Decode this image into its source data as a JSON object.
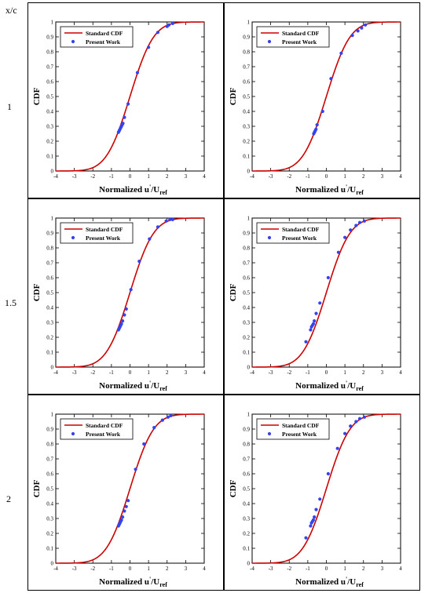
{
  "table": {
    "header_label": "x/c",
    "row_labels": [
      "1",
      "1.5",
      "2"
    ]
  },
  "colors": {
    "curve": "#cc0000",
    "points": "#3344ee",
    "frame": "#000000"
  },
  "chart_data": [
    {
      "type": "line",
      "position": "row-1-left",
      "xlabel": "Normalized  u'/U_ref",
      "ylabel": "CDF",
      "xlim": [
        -4,
        4
      ],
      "ylim": [
        0,
        1
      ],
      "xticks": [
        "-4",
        "-3",
        "-2",
        "-1",
        "0",
        "1",
        "2",
        "3",
        "4"
      ],
      "yticks": [
        "0",
        "0.1",
        "0.2",
        "0.3",
        "0.4",
        "0.5",
        "0.6",
        "0.7",
        "0.8",
        "0.9",
        "1"
      ],
      "legend": {
        "placement": "top-left",
        "entries": [
          "Standard CDF",
          "Present Work"
        ]
      },
      "series": [
        {
          "name": "Standard CDF",
          "kind": "normal-cdf",
          "mean": 0,
          "std": 1
        },
        {
          "name": "Present Work",
          "kind": "scatter",
          "x": [
            -0.62,
            -0.58,
            -0.54,
            -0.5,
            -0.46,
            -0.42,
            -0.38,
            -0.3,
            -0.1,
            0.4,
            1.0,
            1.5,
            2.0,
            2.1,
            2.3
          ],
          "y": [
            0.26,
            0.27,
            0.28,
            0.29,
            0.3,
            0.31,
            0.32,
            0.36,
            0.45,
            0.66,
            0.83,
            0.93,
            0.97,
            0.98,
            0.99
          ]
        }
      ]
    },
    {
      "type": "line",
      "position": "row-1-right",
      "xlabel": "Normalized  u'/U_ref",
      "ylabel": "CDF",
      "xlim": [
        -4,
        4
      ],
      "ylim": [
        0,
        1
      ],
      "xticks": [
        "-4",
        "-3",
        "-2",
        "-1",
        "0",
        "1",
        "2",
        "3",
        "4"
      ],
      "yticks": [
        "0",
        "0.1",
        "0.2",
        "0.3",
        "0.4",
        "0.5",
        "0.6",
        "0.7",
        "0.8",
        "0.9",
        "1"
      ],
      "legend": {
        "placement": "top-left",
        "entries": [
          "Standard CDF",
          "Present Work"
        ]
      },
      "series": [
        {
          "name": "Standard CDF",
          "kind": "normal-cdf",
          "mean": 0,
          "std": 1
        },
        {
          "name": "Present Work",
          "kind": "scatter",
          "x": [
            -0.68,
            -0.64,
            -0.6,
            -0.56,
            -0.5,
            -0.2,
            0.25,
            0.8,
            1.4,
            1.7,
            1.9,
            2.1
          ],
          "y": [
            0.25,
            0.26,
            0.27,
            0.28,
            0.31,
            0.4,
            0.62,
            0.79,
            0.91,
            0.94,
            0.96,
            0.98
          ]
        }
      ]
    },
    {
      "type": "line",
      "position": "row-2-left",
      "xlabel": "Normalized  u'/U_ref",
      "ylabel": "CDF",
      "xlim": [
        -4,
        4
      ],
      "ylim": [
        0,
        1
      ],
      "xticks": [
        "-4",
        "-3",
        "-2",
        "-1",
        "0",
        "1",
        "2",
        "3",
        "4"
      ],
      "yticks": [
        "0",
        "0.1",
        "0.2",
        "0.3",
        "0.4",
        "0.5",
        "0.6",
        "0.7",
        "0.8",
        "0.9",
        "1"
      ],
      "legend": {
        "placement": "top-left",
        "entries": [
          "Standard CDF",
          "Present Work"
        ]
      },
      "series": [
        {
          "name": "Standard CDF",
          "kind": "normal-cdf",
          "mean": 0,
          "std": 1
        },
        {
          "name": "Present Work",
          "kind": "scatter",
          "x": [
            -0.62,
            -0.58,
            -0.54,
            -0.5,
            -0.46,
            -0.4,
            -0.3,
            -0.2,
            0.05,
            0.5,
            1.05,
            1.5,
            1.95,
            2.15,
            2.3
          ],
          "y": [
            0.25,
            0.26,
            0.27,
            0.28,
            0.29,
            0.31,
            0.35,
            0.39,
            0.52,
            0.71,
            0.86,
            0.94,
            0.98,
            0.99,
            0.99
          ]
        }
      ]
    },
    {
      "type": "line",
      "position": "row-2-right",
      "xlabel": "Normalized  u'/U_ref",
      "ylabel": "CDF",
      "xlim": [
        -4,
        4
      ],
      "ylim": [
        0,
        1
      ],
      "xticks": [
        "-4",
        "-3",
        "-2",
        "-1",
        "0",
        "1",
        "2",
        "3",
        "4"
      ],
      "yticks": [
        "0",
        "0.1",
        "0.2",
        "0.3",
        "0.4",
        "0.5",
        "0.6",
        "0.7",
        "0.8",
        "0.9",
        "1"
      ],
      "legend": {
        "placement": "top-left",
        "entries": [
          "Standard CDF",
          "Present Work"
        ]
      },
      "series": [
        {
          "name": "Standard CDF",
          "kind": "normal-cdf",
          "mean": 0,
          "std": 1
        },
        {
          "name": "Present Work",
          "kind": "scatter",
          "x": [
            -1.1,
            -0.85,
            -0.8,
            -0.75,
            -0.7,
            -0.65,
            -0.55,
            -0.35,
            0.1,
            0.65,
            1.0,
            1.3,
            1.6,
            1.8,
            2.05
          ],
          "y": [
            0.17,
            0.25,
            0.27,
            0.28,
            0.29,
            0.31,
            0.36,
            0.43,
            0.6,
            0.77,
            0.87,
            0.92,
            0.95,
            0.97,
            0.98
          ]
        }
      ]
    },
    {
      "type": "line",
      "position": "row-3-left",
      "xlabel": "Normalized  u'/U_ref",
      "ylabel": "CDF",
      "xlim": [
        -4,
        4
      ],
      "ylim": [
        0,
        1
      ],
      "xticks": [
        "-4",
        "-3",
        "-2",
        "-1",
        "0",
        "1",
        "2",
        "3",
        "4"
      ],
      "yticks": [
        "0",
        "0.1",
        "0.2",
        "0.3",
        "0.4",
        "0.5",
        "0.6",
        "0.7",
        "0.8",
        "0.9",
        "1"
      ],
      "legend": {
        "placement": "top-left",
        "entries": [
          "Standard CDF",
          "Present Work"
        ]
      },
      "series": [
        {
          "name": "Standard CDF",
          "kind": "normal-cdf",
          "mean": 0,
          "std": 1
        },
        {
          "name": "Present Work",
          "kind": "scatter",
          "x": [
            -0.62,
            -0.58,
            -0.54,
            -0.5,
            -0.46,
            -0.4,
            -0.3,
            -0.2,
            -0.1,
            0.3,
            0.75,
            1.3,
            1.75,
            2.05,
            2.2
          ],
          "y": [
            0.25,
            0.26,
            0.27,
            0.28,
            0.29,
            0.31,
            0.35,
            0.38,
            0.42,
            0.63,
            0.8,
            0.91,
            0.96,
            0.98,
            0.99
          ]
        }
      ]
    },
    {
      "type": "line",
      "position": "row-3-right",
      "xlabel": "Normalized  u'/U_ref",
      "ylabel": "CDF",
      "xlim": [
        -4,
        4
      ],
      "ylim": [
        0,
        1
      ],
      "xticks": [
        "-4",
        "-3",
        "-2",
        "-1",
        "0",
        "1",
        "2",
        "3",
        "4"
      ],
      "yticks": [
        "0",
        "0.1",
        "0.2",
        "0.3",
        "0.4",
        "0.5",
        "0.6",
        "0.7",
        "0.8",
        "0.9",
        "1"
      ],
      "legend": {
        "placement": "top-left",
        "entries": [
          "Standard CDF",
          "Present Work"
        ]
      },
      "series": [
        {
          "name": "Standard CDF",
          "kind": "normal-cdf",
          "mean": 0,
          "std": 1
        },
        {
          "name": "Present Work",
          "kind": "scatter",
          "x": [
            -1.1,
            -0.85,
            -0.8,
            -0.75,
            -0.7,
            -0.65,
            -0.55,
            -0.35,
            0.1,
            0.6,
            1.0,
            1.3,
            1.6,
            1.8,
            2.05
          ],
          "y": [
            0.17,
            0.25,
            0.27,
            0.28,
            0.29,
            0.31,
            0.36,
            0.43,
            0.6,
            0.77,
            0.87,
            0.92,
            0.95,
            0.97,
            0.98
          ]
        }
      ]
    }
  ]
}
